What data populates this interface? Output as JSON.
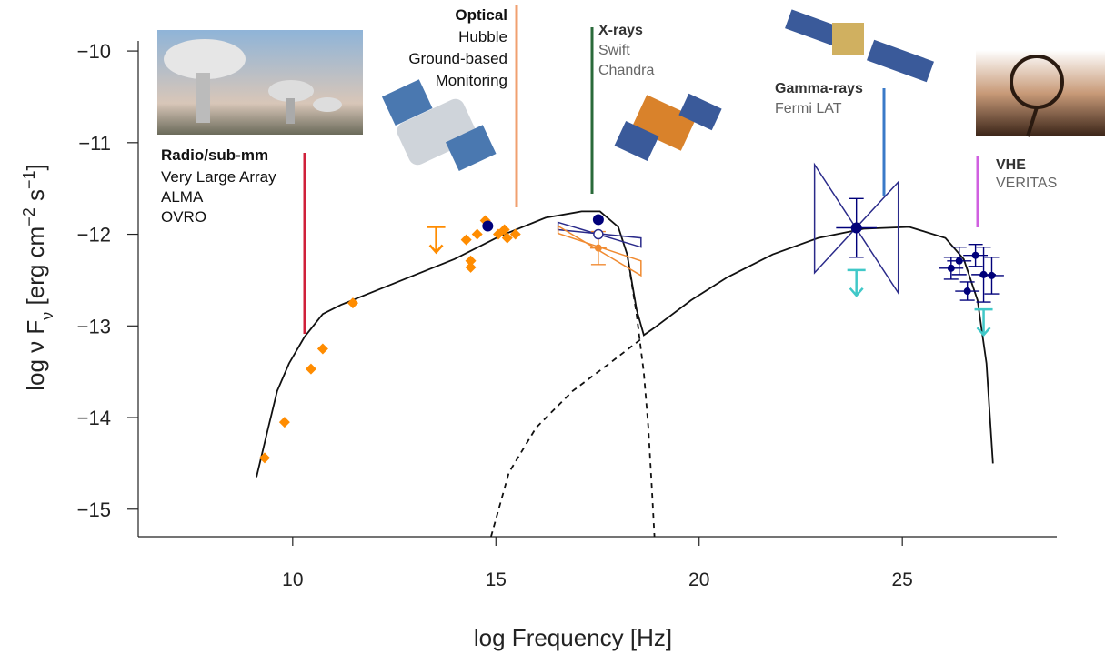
{
  "chart_data": {
    "type": "sed",
    "xlabel": "log Frequency [Hz]",
    "ylabel": [
      "log ν F",
      "ν",
      " [erg cm",
      "−2",
      " s",
      "−1",
      "]"
    ],
    "xlim": [
      6.2,
      28.8
    ],
    "ylim": [
      -15.3,
      -9.89
    ],
    "xticks": [
      10,
      15,
      20,
      25
    ],
    "yticks": [
      {
        "value": -10,
        "label": "−10"
      },
      {
        "value": -11,
        "label": "−11"
      },
      {
        "value": -12,
        "label": "−12"
      },
      {
        "value": -13,
        "label": "−13"
      },
      {
        "value": -14,
        "label": "−14"
      },
      {
        "value": -15,
        "label": "−15"
      }
    ],
    "annotations": [
      [
        "Radio/sub-mm",
        "Very Large Array",
        "ALMA",
        "OVRO"
      ],
      [
        "Optical",
        "Hubble",
        "Ground-based",
        "Monitoring"
      ],
      [
        "X-rays",
        "Swift",
        "Chandra"
      ],
      [
        "Gamma-rays",
        "Fermi LAT"
      ],
      [
        "VHE",
        "VERITAS"
      ]
    ],
    "series": [
      {
        "marker": "line",
        "dash": false,
        "color": "#111111",
        "x": [
          9.11,
          9.4,
          9.62,
          9.91,
          10.29,
          10.74,
          11.19,
          11.74,
          12.86,
          13.98,
          15.1,
          16.22,
          17.11,
          17.56,
          18.01,
          18.23,
          18.46,
          18.64,
          18.9,
          19.8,
          20.69,
          21.81,
          22.93,
          24.05,
          25.17,
          26.06,
          26.51,
          26.85,
          27.07,
          27.23
        ],
        "y": [
          -14.65,
          -14.11,
          -13.71,
          -13.41,
          -13.12,
          -12.87,
          -12.77,
          -12.67,
          -12.47,
          -12.27,
          -12.02,
          -11.82,
          -11.75,
          -11.75,
          -11.92,
          -12.22,
          -12.82,
          -13.1,
          -13.02,
          -12.72,
          -12.47,
          -12.22,
          -12.04,
          -11.94,
          -11.92,
          -12.04,
          -12.27,
          -12.72,
          -13.41,
          -14.5
        ]
      },
      {
        "marker": "line",
        "dash": true,
        "color": "#111111",
        "x": [
          18.23,
          18.46,
          18.64,
          18.75,
          18.84,
          18.9
        ],
        "y": [
          -12.22,
          -12.87,
          -13.51,
          -14.11,
          -14.8,
          -15.3
        ]
      },
      {
        "marker": "line",
        "dash": true,
        "color": "#111111",
        "x": [
          14.88,
          15.32,
          15.99,
          16.89,
          17.79,
          18.64
        ],
        "y": [
          -15.3,
          -14.6,
          -14.11,
          -13.71,
          -13.41,
          -13.12
        ]
      },
      {
        "marker": "bowtie",
        "color": "#2a2a8a",
        "x": [
          22.84,
          24.9
        ],
        "y_a": [
          -11.24,
          -12.64
        ],
        "y_b": [
          -12.42,
          -11.43
        ]
      },
      {
        "marker": "bowtie",
        "color": "#2a2a8a",
        "x": [
          16.53,
          18.57
        ],
        "y_a": [
          -11.87,
          -12.14
        ],
        "y_b": [
          -11.95,
          -12.04
        ]
      },
      {
        "marker": "bowtie",
        "color": "#f08a30",
        "x": [
          16.53,
          18.57
        ],
        "y_a": [
          -11.91,
          -12.45
        ],
        "y_b": [
          -11.99,
          -12.29
        ]
      },
      {
        "marker": "diamond",
        "color": "#ff8c00",
        "x": [
          9.31,
          9.8,
          10.45,
          10.74,
          11.48,
          14.27,
          14.54,
          14.38,
          14.38,
          14.74,
          15.06,
          15.21,
          15.28,
          15.48
        ],
        "y": [
          -14.44,
          -14.05,
          -13.47,
          -13.25,
          -12.75,
          -12.06,
          -12.0,
          -12.29,
          -12.36,
          -11.85,
          -12.0,
          -11.95,
          -12.04,
          -12.0
        ]
      },
      {
        "marker": "upper-limit",
        "color": "#ff8c00",
        "x": [
          13.53
        ],
        "y": [
          -11.92
        ]
      },
      {
        "marker": "errorbar",
        "color": "#f08a30",
        "size": 4,
        "x": [
          17.52
        ],
        "y": [
          -12.15
        ],
        "xerr": [
          0.2
        ],
        "yerr": [
          0.18
        ]
      },
      {
        "marker": "circle",
        "color": "#00007a",
        "x": [
          14.8,
          17.52
        ],
        "y": [
          -11.91,
          -11.84
        ]
      },
      {
        "marker": "open-circle",
        "color": "#2a2a8a",
        "x": [
          17.52
        ],
        "y": [
          -12.0
        ]
      },
      {
        "marker": "errorbar",
        "color": "#00007a",
        "size": 6,
        "x": [
          23.87
        ],
        "y": [
          -11.93
        ],
        "xerr": [
          0.5
        ],
        "yerr": [
          0.32
        ]
      },
      {
        "marker": "errorbar",
        "color": "#00007a",
        "size": 4,
        "x": [
          26.2,
          26.4,
          26.6,
          26.8,
          27.0,
          27.2
        ],
        "y": [
          -12.37,
          -12.29,
          -12.62,
          -12.23,
          -12.44,
          -12.45
        ],
        "xerr": [
          0.3,
          0.3,
          0.3,
          0.3,
          0.3,
          0.3
        ],
        "yerr": [
          0.12,
          0.15,
          0.1,
          0.12,
          0.3,
          0.2
        ]
      },
      {
        "marker": "upper-limit",
        "color": "#40c8c8",
        "x": [
          23.87,
          27.0
        ],
        "y": [
          -12.39,
          -12.82
        ]
      }
    ]
  }
}
